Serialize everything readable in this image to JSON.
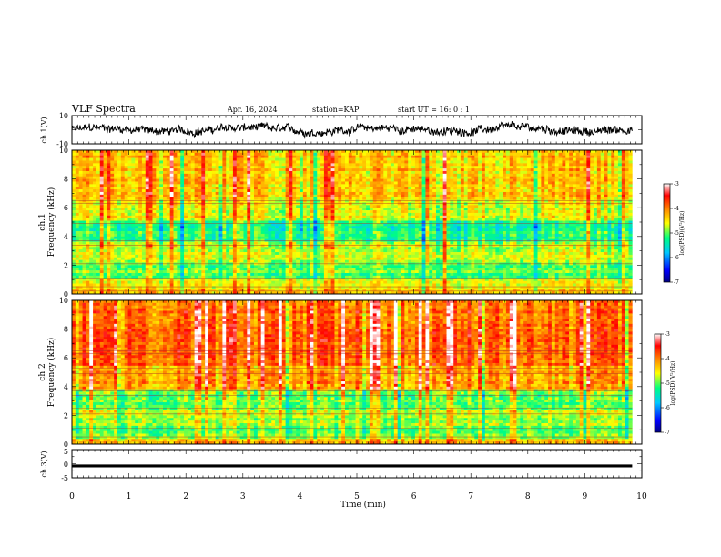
{
  "header": {
    "title": "VLF Spectra",
    "date": "Apr. 16, 2024",
    "station": "station=KAP",
    "start": "start  UT  =   16: 0  : 1"
  },
  "chart_data": [
    {
      "type": "line",
      "panel": "ch1-waveform",
      "ylabel": "ch.1(V)",
      "ylim": [
        -10,
        10
      ],
      "yticks": [
        "10",
        "-10"
      ],
      "xlim": [
        0,
        10
      ],
      "x_extent": [
        0,
        9.83
      ],
      "description_of_values": "noisy waveform, roughly -6 to 6 V",
      "approx_envelope": [
        -6,
        6
      ]
    },
    {
      "type": "heatmap",
      "panel": "ch1-spectrogram",
      "ylabel": "ch.1\nFrequency (kHz)",
      "ylim": [
        0,
        10
      ],
      "yticks": [
        "0",
        "2",
        "4",
        "6",
        "8",
        "10"
      ],
      "xlim": [
        0,
        10
      ],
      "x_extent": [
        0,
        9.83
      ],
      "colorbar": {
        "label": "log(PSD)(V²/Hz)",
        "range": [
          -7,
          -3
        ],
        "ticks": [
          "-3",
          "-4",
          "-5",
          "-6",
          "-7"
        ]
      },
      "bands_kHz": [
        {
          "from": 0.0,
          "to": 0.4,
          "level": -4.3
        },
        {
          "from": 0.4,
          "to": 1.1,
          "level": -4.6
        },
        {
          "from": 1.1,
          "to": 2.2,
          "level": -5.0
        },
        {
          "from": 2.2,
          "to": 3.6,
          "level": -4.7
        },
        {
          "from": 3.6,
          "to": 5.0,
          "level": -5.2
        },
        {
          "from": 5.0,
          "to": 6.5,
          "level": -4.6
        },
        {
          "from": 6.5,
          "to": 10.0,
          "level": -4.3
        }
      ]
    },
    {
      "type": "heatmap",
      "panel": "ch2-spectrogram",
      "ylabel": "ch.2\nFrequency (kHz)",
      "ylim": [
        0,
        10
      ],
      "yticks": [
        "0",
        "2",
        "4",
        "6",
        "8",
        "10"
      ],
      "xlim": [
        0,
        10
      ],
      "x_extent": [
        0,
        9.83
      ],
      "colorbar": {
        "label": "log(PSD)(V²/Hz)",
        "range": [
          -7,
          -3
        ],
        "ticks": [
          "-3",
          "-4",
          "-5",
          "-6",
          "-7"
        ]
      },
      "bands_kHz": [
        {
          "from": 0.0,
          "to": 0.4,
          "level": -4.4
        },
        {
          "from": 0.4,
          "to": 1.2,
          "level": -5.0
        },
        {
          "from": 1.2,
          "to": 2.4,
          "level": -4.8
        },
        {
          "from": 2.4,
          "to": 3.8,
          "level": -5.0
        },
        {
          "from": 3.8,
          "to": 5.5,
          "level": -4.2
        },
        {
          "from": 5.5,
          "to": 10.0,
          "level": -3.9
        }
      ]
    },
    {
      "type": "line",
      "panel": "ch3-waveform",
      "ylabel": "ch.3(V)",
      "ylim": [
        -5,
        5
      ],
      "yticks": [
        "5",
        "0",
        "-5"
      ],
      "xlim": [
        0,
        10
      ],
      "x_extent": [
        0,
        9.83
      ],
      "approx_center": -0.8,
      "approx_envelope": [
        -1.3,
        -0.3
      ]
    }
  ],
  "xaxis": {
    "label": "Time (min)",
    "ticks": [
      "0",
      "1",
      "2",
      "3",
      "4",
      "5",
      "6",
      "7",
      "8",
      "9",
      "10"
    ]
  },
  "colors": {
    "axes": "#000000",
    "trace": "#000000",
    "colormap": [
      "#000080",
      "#0000ff",
      "#00c8ff",
      "#00ff80",
      "#ffff00",
      "#ff8000",
      "#ff0000",
      "#ffffff"
    ]
  }
}
